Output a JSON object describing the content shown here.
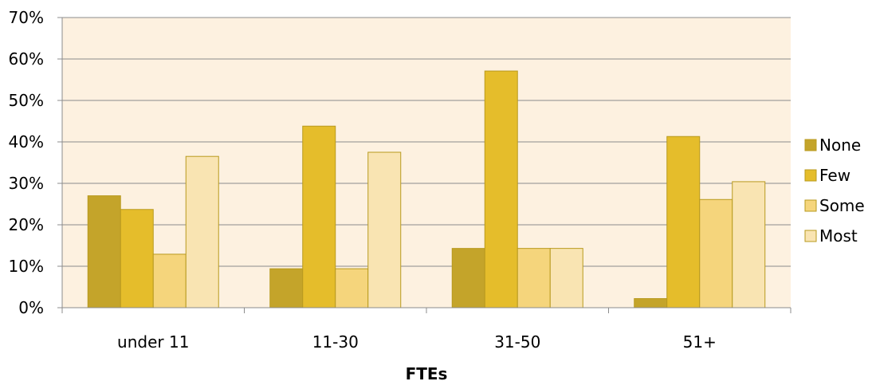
{
  "chart_data": {
    "type": "bar",
    "categories": [
      "under 11",
      "11-30",
      "31-50",
      "51+"
    ],
    "series": [
      {
        "name": "None",
        "values": [
          27.0,
          9.4,
          14.3,
          2.2
        ],
        "color": "#c4a42a"
      },
      {
        "name": "Few",
        "values": [
          23.7,
          43.8,
          57.1,
          41.3
        ],
        "color": "#e5bd2b"
      },
      {
        "name": "Some",
        "values": [
          12.9,
          9.4,
          14.3,
          26.1
        ],
        "color": "#f5d57c"
      },
      {
        "name": "Most",
        "values": [
          36.5,
          37.5,
          14.3,
          30.4
        ],
        "color": "#f9e4b2"
      }
    ],
    "xlabel": "FTEs",
    "ylabel": "",
    "ylim": [
      0,
      70
    ],
    "yticks": [
      "0%",
      "10%",
      "20%",
      "30%",
      "40%",
      "50%",
      "60%",
      "70%"
    ],
    "grid": true,
    "legend_position": "right",
    "plot_background": "#fdf1e0",
    "bar_border_color": "#b89a1e"
  }
}
